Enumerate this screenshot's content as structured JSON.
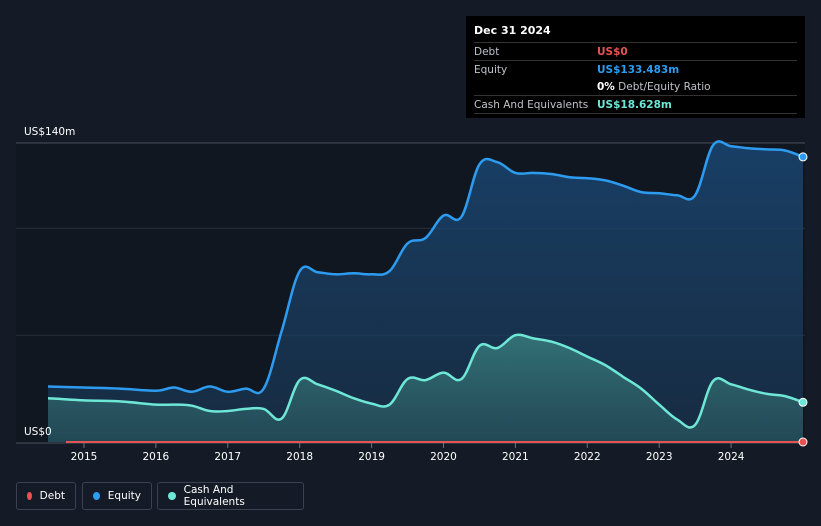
{
  "tooltip": {
    "date": "Dec 31 2024",
    "debt_label": "Debt",
    "debt_value": "US$0",
    "equity_label": "Equity",
    "equity_value": "US$133.483m",
    "ratio_value": "0%",
    "ratio_label": "Debt/Equity Ratio",
    "cash_label": "Cash And Equivalents",
    "cash_value": "US$18.628m"
  },
  "colors": {
    "debt": "#e55353",
    "equity": "#2d9cf0",
    "cash": "#6ee7d6",
    "background": "#151b26",
    "tooltip_bg": "#000000"
  },
  "legend": {
    "debt": "Debt",
    "equity": "Equity",
    "cash": "Cash And Equivalents"
  },
  "chart_data": {
    "type": "area",
    "y_top_label": "US$140m",
    "y_bottom_label": "US$0",
    "ylim": [
      0,
      140
    ],
    "xlim": [
      2014.5,
      2025.0
    ],
    "x_ticks": [
      "2015",
      "2016",
      "2017",
      "2018",
      "2019",
      "2020",
      "2021",
      "2022",
      "2023",
      "2024"
    ],
    "x_tick_values": [
      2015,
      2016,
      2017,
      2018,
      2019,
      2020,
      2021,
      2022,
      2023,
      2024
    ],
    "grid": true,
    "legend_position": "bottom-left",
    "series": [
      {
        "name": "Equity",
        "x": [
          2014.5,
          2015.0,
          2015.5,
          2016.0,
          2016.25,
          2016.5,
          2016.75,
          2017.0,
          2017.25,
          2017.5,
          2017.75,
          2018.0,
          2018.25,
          2018.5,
          2018.75,
          2019.0,
          2019.25,
          2019.5,
          2019.75,
          2020.0,
          2020.25,
          2020.5,
          2020.75,
          2021.0,
          2021.25,
          2021.5,
          2021.75,
          2022.0,
          2022.25,
          2022.5,
          2022.75,
          2023.0,
          2023.25,
          2023.5,
          2023.75,
          2024.0,
          2024.25,
          2024.5,
          2024.75,
          2025.0
        ],
        "values": [
          26,
          25.5,
          25,
          24,
          25.5,
          23.5,
          26,
          23.5,
          25,
          25,
          52,
          80,
          79.5,
          78.5,
          79,
          78.5,
          80,
          93,
          95.5,
          106,
          105.5,
          130,
          131,
          126,
          126,
          125.5,
          124,
          123.5,
          122.5,
          120,
          117,
          116.5,
          115.5,
          115.5,
          139,
          138.5,
          137.5,
          137,
          136.5,
          133.5
        ]
      },
      {
        "name": "Cash And Equivalents",
        "x": [
          2014.5,
          2015.0,
          2015.5,
          2016.0,
          2016.25,
          2016.5,
          2016.75,
          2017.0,
          2017.25,
          2017.5,
          2017.75,
          2018.0,
          2018.25,
          2018.5,
          2018.75,
          2019.0,
          2019.25,
          2019.5,
          2019.75,
          2020.0,
          2020.25,
          2020.5,
          2020.75,
          2021.0,
          2021.25,
          2021.5,
          2021.75,
          2022.0,
          2022.25,
          2022.5,
          2022.75,
          2023.0,
          2023.25,
          2023.5,
          2023.75,
          2024.0,
          2024.25,
          2024.5,
          2024.75,
          2025.0
        ],
        "values": [
          20.5,
          19.5,
          19,
          17.5,
          17.5,
          17,
          14.5,
          14.5,
          15.5,
          15.5,
          11,
          29,
          27,
          24,
          20.5,
          18,
          17.5,
          29.5,
          29,
          32.5,
          29.5,
          45,
          44,
          50,
          48.5,
          47,
          44,
          40,
          36,
          30.5,
          25,
          17.5,
          10.5,
          8,
          28.5,
          27,
          24.5,
          22.5,
          21.5,
          18.6
        ]
      },
      {
        "name": "Debt",
        "x": [
          2014.75,
          2025.0
        ],
        "values": [
          0,
          0
        ]
      }
    ]
  }
}
